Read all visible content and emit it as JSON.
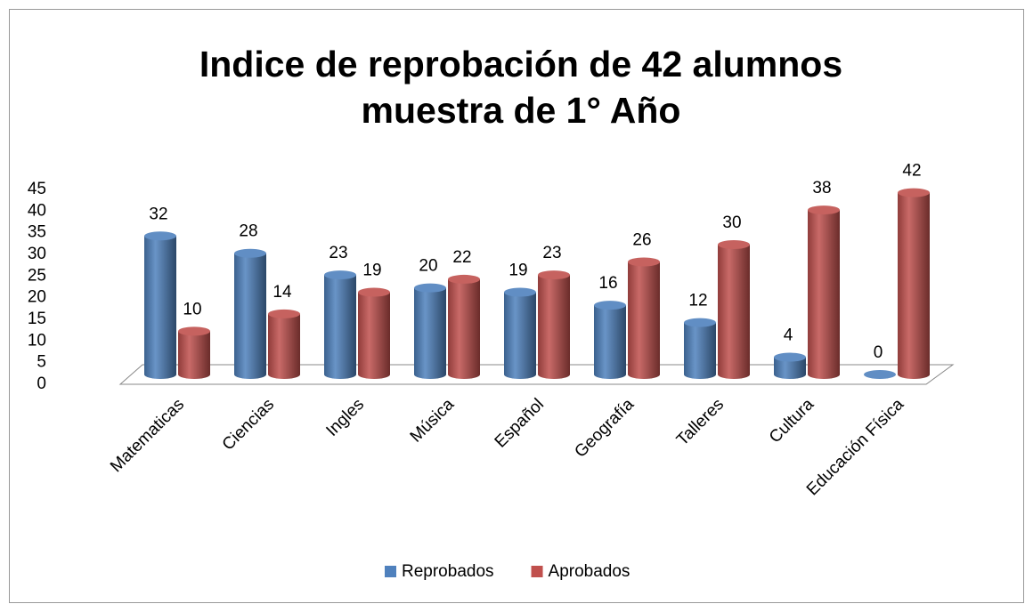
{
  "chart_data": {
    "type": "bar3d",
    "title": [
      "Indice de reprobación de 42 alumnos",
      "muestra de 1° Año"
    ],
    "categories": [
      "Matematicas",
      "Ciencias",
      "Ingles",
      "Música",
      "Español",
      "Geografía",
      "Talleres",
      "Cultura",
      "Educación Física"
    ],
    "series": [
      {
        "name": "Reprobados",
        "color": "#4f81bd",
        "values": [
          32,
          28,
          23,
          20,
          19,
          16,
          12,
          4,
          0
        ]
      },
      {
        "name": "Aprobados",
        "color": "#c0504d",
        "values": [
          10,
          14,
          19,
          22,
          23,
          26,
          30,
          38,
          42
        ]
      }
    ],
    "ylim": [
      0,
      45
    ],
    "yticks": [
      0,
      5,
      10,
      15,
      20,
      25,
      30,
      35,
      40,
      45
    ],
    "legend": "bottom"
  }
}
